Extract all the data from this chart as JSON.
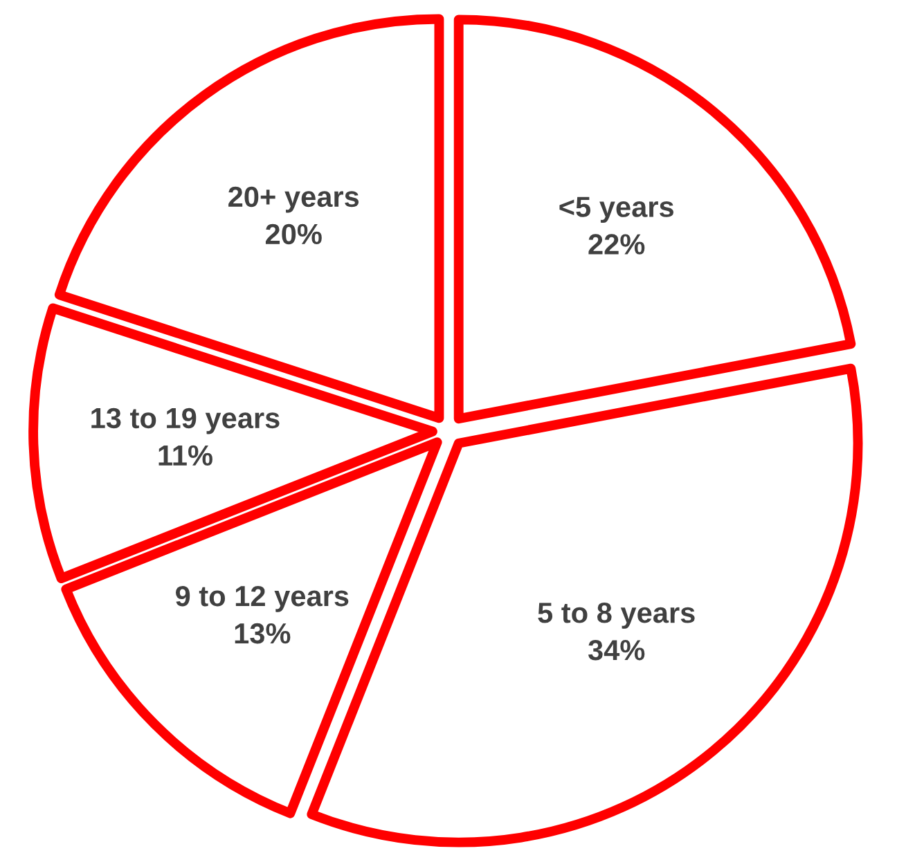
{
  "chart_data": {
    "type": "pie",
    "categories": [
      "<5 years",
      "5 to 8 years",
      "9 to 12 years",
      "13 to 19 years",
      "20+ years"
    ],
    "values": [
      22,
      34,
      13,
      11,
      20
    ],
    "value_labels": [
      "22%",
      "34%",
      "13%",
      "11%",
      "20%"
    ],
    "colors": [
      "#ff0000",
      "#ff0000",
      "#ff0000",
      "#ff0000",
      "#ff0000"
    ]
  }
}
